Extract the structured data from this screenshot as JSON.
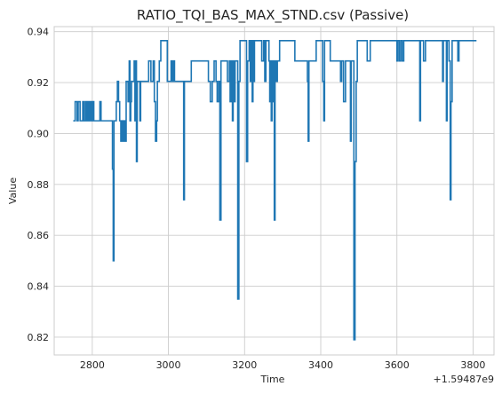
{
  "chart_data": {
    "type": "line",
    "title": "RATIO_TQI_BAS_MAX_STND.csv (Passive)",
    "xlabel": "Time",
    "ylabel": "Value",
    "x_offset_label": "+1.59487e9",
    "x_ticks": [
      2800,
      3000,
      3200,
      3400,
      3600,
      3800
    ],
    "x_tick_labels": [
      "2800",
      "3000",
      "3200",
      "3400",
      "3600",
      "3800"
    ],
    "y_ticks": [
      0.82,
      0.84,
      0.86,
      0.88,
      0.9,
      0.92,
      0.94
    ],
    "y_tick_labels": [
      "0.82",
      "0.84",
      "0.86",
      "0.88",
      "0.90",
      "0.92",
      "0.94"
    ],
    "xlim": [
      2700,
      3855
    ],
    "ylim": [
      0.813,
      0.942
    ],
    "grid": true,
    "legend": "none",
    "series": [
      {
        "color": "#1f77b4",
        "draw_style": "steps-post",
        "points": [
          [
            2750,
            0.905
          ],
          [
            2755,
            0.9125
          ],
          [
            2760,
            0.905
          ],
          [
            2763,
            0.9125
          ],
          [
            2768,
            0.905
          ],
          [
            2775,
            0.9125
          ],
          [
            2778,
            0.905
          ],
          [
            2782,
            0.9125
          ],
          [
            2784,
            0.905
          ],
          [
            2787,
            0.9125
          ],
          [
            2789,
            0.905
          ],
          [
            2792,
            0.9125
          ],
          [
            2794,
            0.905
          ],
          [
            2797,
            0.9125
          ],
          [
            2799,
            0.905
          ],
          [
            2802,
            0.9125
          ],
          [
            2804,
            0.905
          ],
          [
            2820,
            0.9125
          ],
          [
            2823,
            0.905
          ],
          [
            2850,
            0.905
          ],
          [
            2853,
            0.886
          ],
          [
            2855,
            0.85
          ],
          [
            2857,
            0.905
          ],
          [
            2863,
            0.9125
          ],
          [
            2866,
            0.9205
          ],
          [
            2869,
            0.9125
          ],
          [
            2872,
            0.905
          ],
          [
            2875,
            0.897
          ],
          [
            2878,
            0.905
          ],
          [
            2880,
            0.897
          ],
          [
            2883,
            0.905
          ],
          [
            2886,
            0.897
          ],
          [
            2889,
            0.9205
          ],
          [
            2894,
            0.9125
          ],
          [
            2897,
            0.9285
          ],
          [
            2899,
            0.905
          ],
          [
            2901,
            0.9125
          ],
          [
            2903,
            0.9205
          ],
          [
            2910,
            0.9285
          ],
          [
            2912,
            0.905
          ],
          [
            2914,
            0.9285
          ],
          [
            2916,
            0.889
          ],
          [
            2918,
            0.9205
          ],
          [
            2925,
            0.905
          ],
          [
            2927,
            0.9205
          ],
          [
            2948,
            0.9285
          ],
          [
            2954,
            0.9205
          ],
          [
            2960,
            0.9285
          ],
          [
            2963,
            0.9125
          ],
          [
            2966,
            0.897
          ],
          [
            2969,
            0.905
          ],
          [
            2971,
            0.9205
          ],
          [
            2976,
            0.9285
          ],
          [
            2980,
            0.9365
          ],
          [
            2997,
            0.9205
          ],
          [
            3007,
            0.9285
          ],
          [
            3010,
            0.9205
          ],
          [
            3013,
            0.9285
          ],
          [
            3016,
            0.9205
          ],
          [
            3036,
            0.9205
          ],
          [
            3040,
            0.874
          ],
          [
            3042,
            0.9205
          ],
          [
            3048,
            0.9205
          ],
          [
            3060,
            0.9285
          ],
          [
            3105,
            0.9205
          ],
          [
            3110,
            0.9125
          ],
          [
            3115,
            0.9205
          ],
          [
            3120,
            0.9285
          ],
          [
            3125,
            0.9205
          ],
          [
            3128,
            0.9125
          ],
          [
            3132,
            0.9205
          ],
          [
            3135,
            0.866
          ],
          [
            3138,
            0.9285
          ],
          [
            3150,
            0.9285
          ],
          [
            3155,
            0.9205
          ],
          [
            3160,
            0.9285
          ],
          [
            3162,
            0.9125
          ],
          [
            3165,
            0.9285
          ],
          [
            3168,
            0.905
          ],
          [
            3170,
            0.9285
          ],
          [
            3172,
            0.9125
          ],
          [
            3175,
            0.9285
          ],
          [
            3182,
            0.835
          ],
          [
            3185,
            0.9205
          ],
          [
            3188,
            0.9365
          ],
          [
            3205,
            0.889
          ],
          [
            3208,
            0.9285
          ],
          [
            3212,
            0.9365
          ],
          [
            3215,
            0.9205
          ],
          [
            3218,
            0.9365
          ],
          [
            3220,
            0.9125
          ],
          [
            3222,
            0.9365
          ],
          [
            3224,
            0.9205
          ],
          [
            3226,
            0.9365
          ],
          [
            3245,
            0.9285
          ],
          [
            3250,
            0.9365
          ],
          [
            3253,
            0.9205
          ],
          [
            3256,
            0.9365
          ],
          [
            3264,
            0.9285
          ],
          [
            3266,
            0.9125
          ],
          [
            3268,
            0.9285
          ],
          [
            3270,
            0.905
          ],
          [
            3272,
            0.9285
          ],
          [
            3274,
            0.9125
          ],
          [
            3276,
            0.9285
          ],
          [
            3278,
            0.866
          ],
          [
            3280,
            0.9285
          ],
          [
            3283,
            0.9205
          ],
          [
            3286,
            0.9285
          ],
          [
            3292,
            0.9365
          ],
          [
            3305,
            0.9365
          ],
          [
            3332,
            0.9285
          ],
          [
            3365,
            0.9205
          ],
          [
            3367,
            0.897
          ],
          [
            3369,
            0.9285
          ],
          [
            3384,
            0.9285
          ],
          [
            3388,
            0.9365
          ],
          [
            3405,
            0.9205
          ],
          [
            3408,
            0.905
          ],
          [
            3410,
            0.9365
          ],
          [
            3425,
            0.9285
          ],
          [
            3448,
            0.9285
          ],
          [
            3452,
            0.9205
          ],
          [
            3455,
            0.9285
          ],
          [
            3460,
            0.9125
          ],
          [
            3465,
            0.9285
          ],
          [
            3475,
            0.9285
          ],
          [
            3478,
            0.897
          ],
          [
            3480,
            0.9285
          ],
          [
            3484,
            0.9285
          ],
          [
            3487,
            0.819
          ],
          [
            3490,
            0.889
          ],
          [
            3493,
            0.9205
          ],
          [
            3496,
            0.9365
          ],
          [
            3510,
            0.9365
          ],
          [
            3522,
            0.9285
          ],
          [
            3530,
            0.9365
          ],
          [
            3600,
            0.9285
          ],
          [
            3602,
            0.9365
          ],
          [
            3606,
            0.9285
          ],
          [
            3610,
            0.9365
          ],
          [
            3614,
            0.9285
          ],
          [
            3618,
            0.9365
          ],
          [
            3660,
            0.905
          ],
          [
            3662,
            0.9365
          ],
          [
            3670,
            0.9285
          ],
          [
            3675,
            0.9365
          ],
          [
            3720,
            0.9205
          ],
          [
            3722,
            0.9365
          ],
          [
            3730,
            0.905
          ],
          [
            3732,
            0.9365
          ],
          [
            3737,
            0.9285
          ],
          [
            3740,
            0.874
          ],
          [
            3742,
            0.9125
          ],
          [
            3745,
            0.9365
          ],
          [
            3760,
            0.9285
          ],
          [
            3763,
            0.9365
          ],
          [
            3790,
            0.9365
          ],
          [
            3809,
            0.9365
          ]
        ]
      }
    ]
  }
}
